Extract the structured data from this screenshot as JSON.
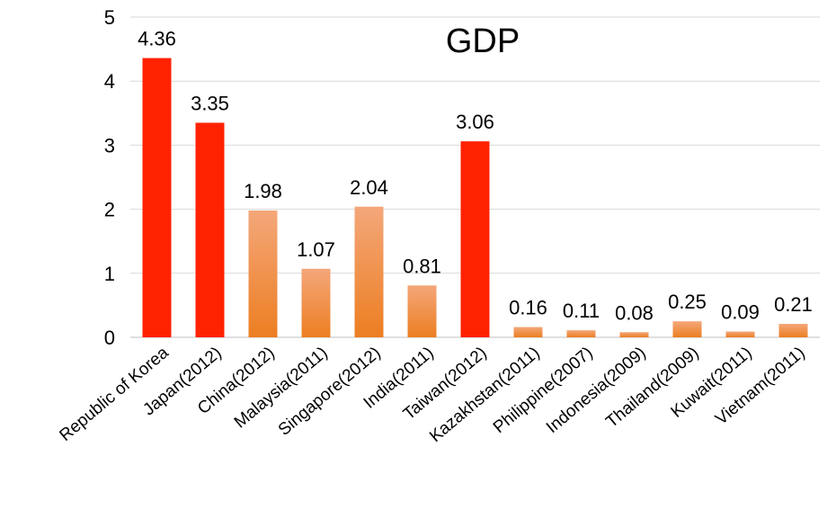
{
  "chart_data": {
    "type": "bar",
    "title_visible": "GDP",
    "categories": [
      "Republic of Korea",
      "Japan(2012)",
      "China(2012)",
      "Malaysia(2011)",
      "Singapore(2012)",
      "India(2011)",
      "Taiwan(2012)",
      "Kazakhstan(2011)",
      "Philippine(2007)",
      "Indonesia(2009)",
      "Thailand(2009)",
      "Kuwait(2011)",
      "Vietnam(2011)"
    ],
    "values": [
      4.36,
      3.35,
      1.98,
      1.07,
      2.04,
      0.81,
      3.06,
      0.16,
      0.11,
      0.08,
      0.25,
      0.09,
      0.21
    ],
    "data_labels": [
      "4.36",
      "3.35",
      "1.98",
      "1.07",
      "2.04",
      "0.81",
      "3.06",
      "0.16",
      "0.11",
      "0.08",
      "0.25",
      "0.09",
      "0.21"
    ],
    "highlighted": [
      true,
      true,
      false,
      false,
      false,
      false,
      true,
      false,
      false,
      false,
      false,
      false,
      false
    ],
    "ylim": [
      0,
      5
    ],
    "yticks": [
      "0",
      "1",
      "2",
      "3",
      "4",
      "5"
    ],
    "grid": true,
    "legend": "none",
    "colors": {
      "highlight": "#ff2200",
      "normal_top": "#f4a77a",
      "normal_bottom": "#ec7e22",
      "grid": "#d9d9d9",
      "axis": "#bfbfbf"
    }
  }
}
